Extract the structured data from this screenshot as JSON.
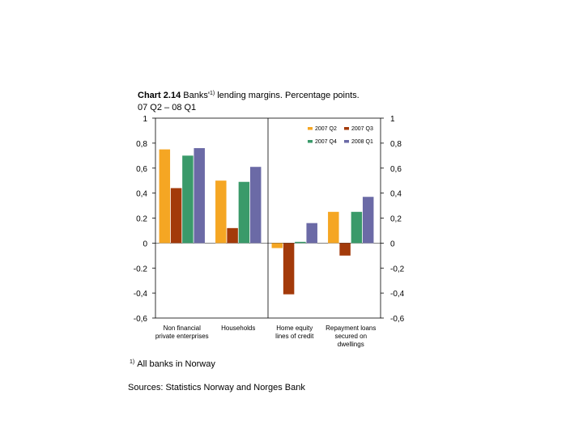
{
  "title": {
    "bold": "Chart 2.14",
    "text_before_sup": " Banks'",
    "sup": "1)",
    "text_after_sup": " lending margins. Percentage points.",
    "line2": "07 Q2 – 08 Q1"
  },
  "footnote": {
    "marker": "1)",
    "text": "All banks in Norway"
  },
  "sources": "Sources: Statistics Norway and Norges Bank",
  "chart_data": {
    "type": "bar",
    "categories": [
      [
        "Non financial",
        "private enterprises"
      ],
      [
        "Households"
      ],
      [
        "Home equity",
        "lines of credit"
      ],
      [
        "Repayment loans",
        "secured on",
        "dwellings"
      ]
    ],
    "series": [
      {
        "name": "2007 Q2",
        "color": "#f5a623",
        "values": [
          0.75,
          0.5,
          -0.04,
          0.25
        ]
      },
      {
        "name": "2007 Q3",
        "color": "#a33a0a",
        "values": [
          0.44,
          0.12,
          -0.41,
          -0.1
        ]
      },
      {
        "name": "2007 Q4",
        "color": "#3a9a6a",
        "values": [
          0.7,
          0.49,
          0.01,
          0.25
        ]
      },
      {
        "name": "2008 Q1",
        "color": "#6b6aa6",
        "values": [
          0.76,
          0.61,
          0.16,
          0.37
        ]
      }
    ],
    "ylim": [
      -0.6,
      1
    ],
    "left_ticks": [
      "-0,6",
      "-0,4",
      "-0.2",
      "0",
      "0.2",
      "0,4",
      "0,6",
      "0,8",
      "1"
    ],
    "right_ticks": [
      "-0,6",
      "-0,4",
      "-0,2",
      "0",
      "0,2",
      "0,4",
      "0,6",
      "0,8",
      "1"
    ],
    "tick_values": [
      -0.6,
      -0.4,
      -0.2,
      0,
      0.2,
      0.4,
      0.6,
      0.8,
      1
    ],
    "divider_after_category": 1,
    "legend_placement": "top-right",
    "grid": false
  }
}
